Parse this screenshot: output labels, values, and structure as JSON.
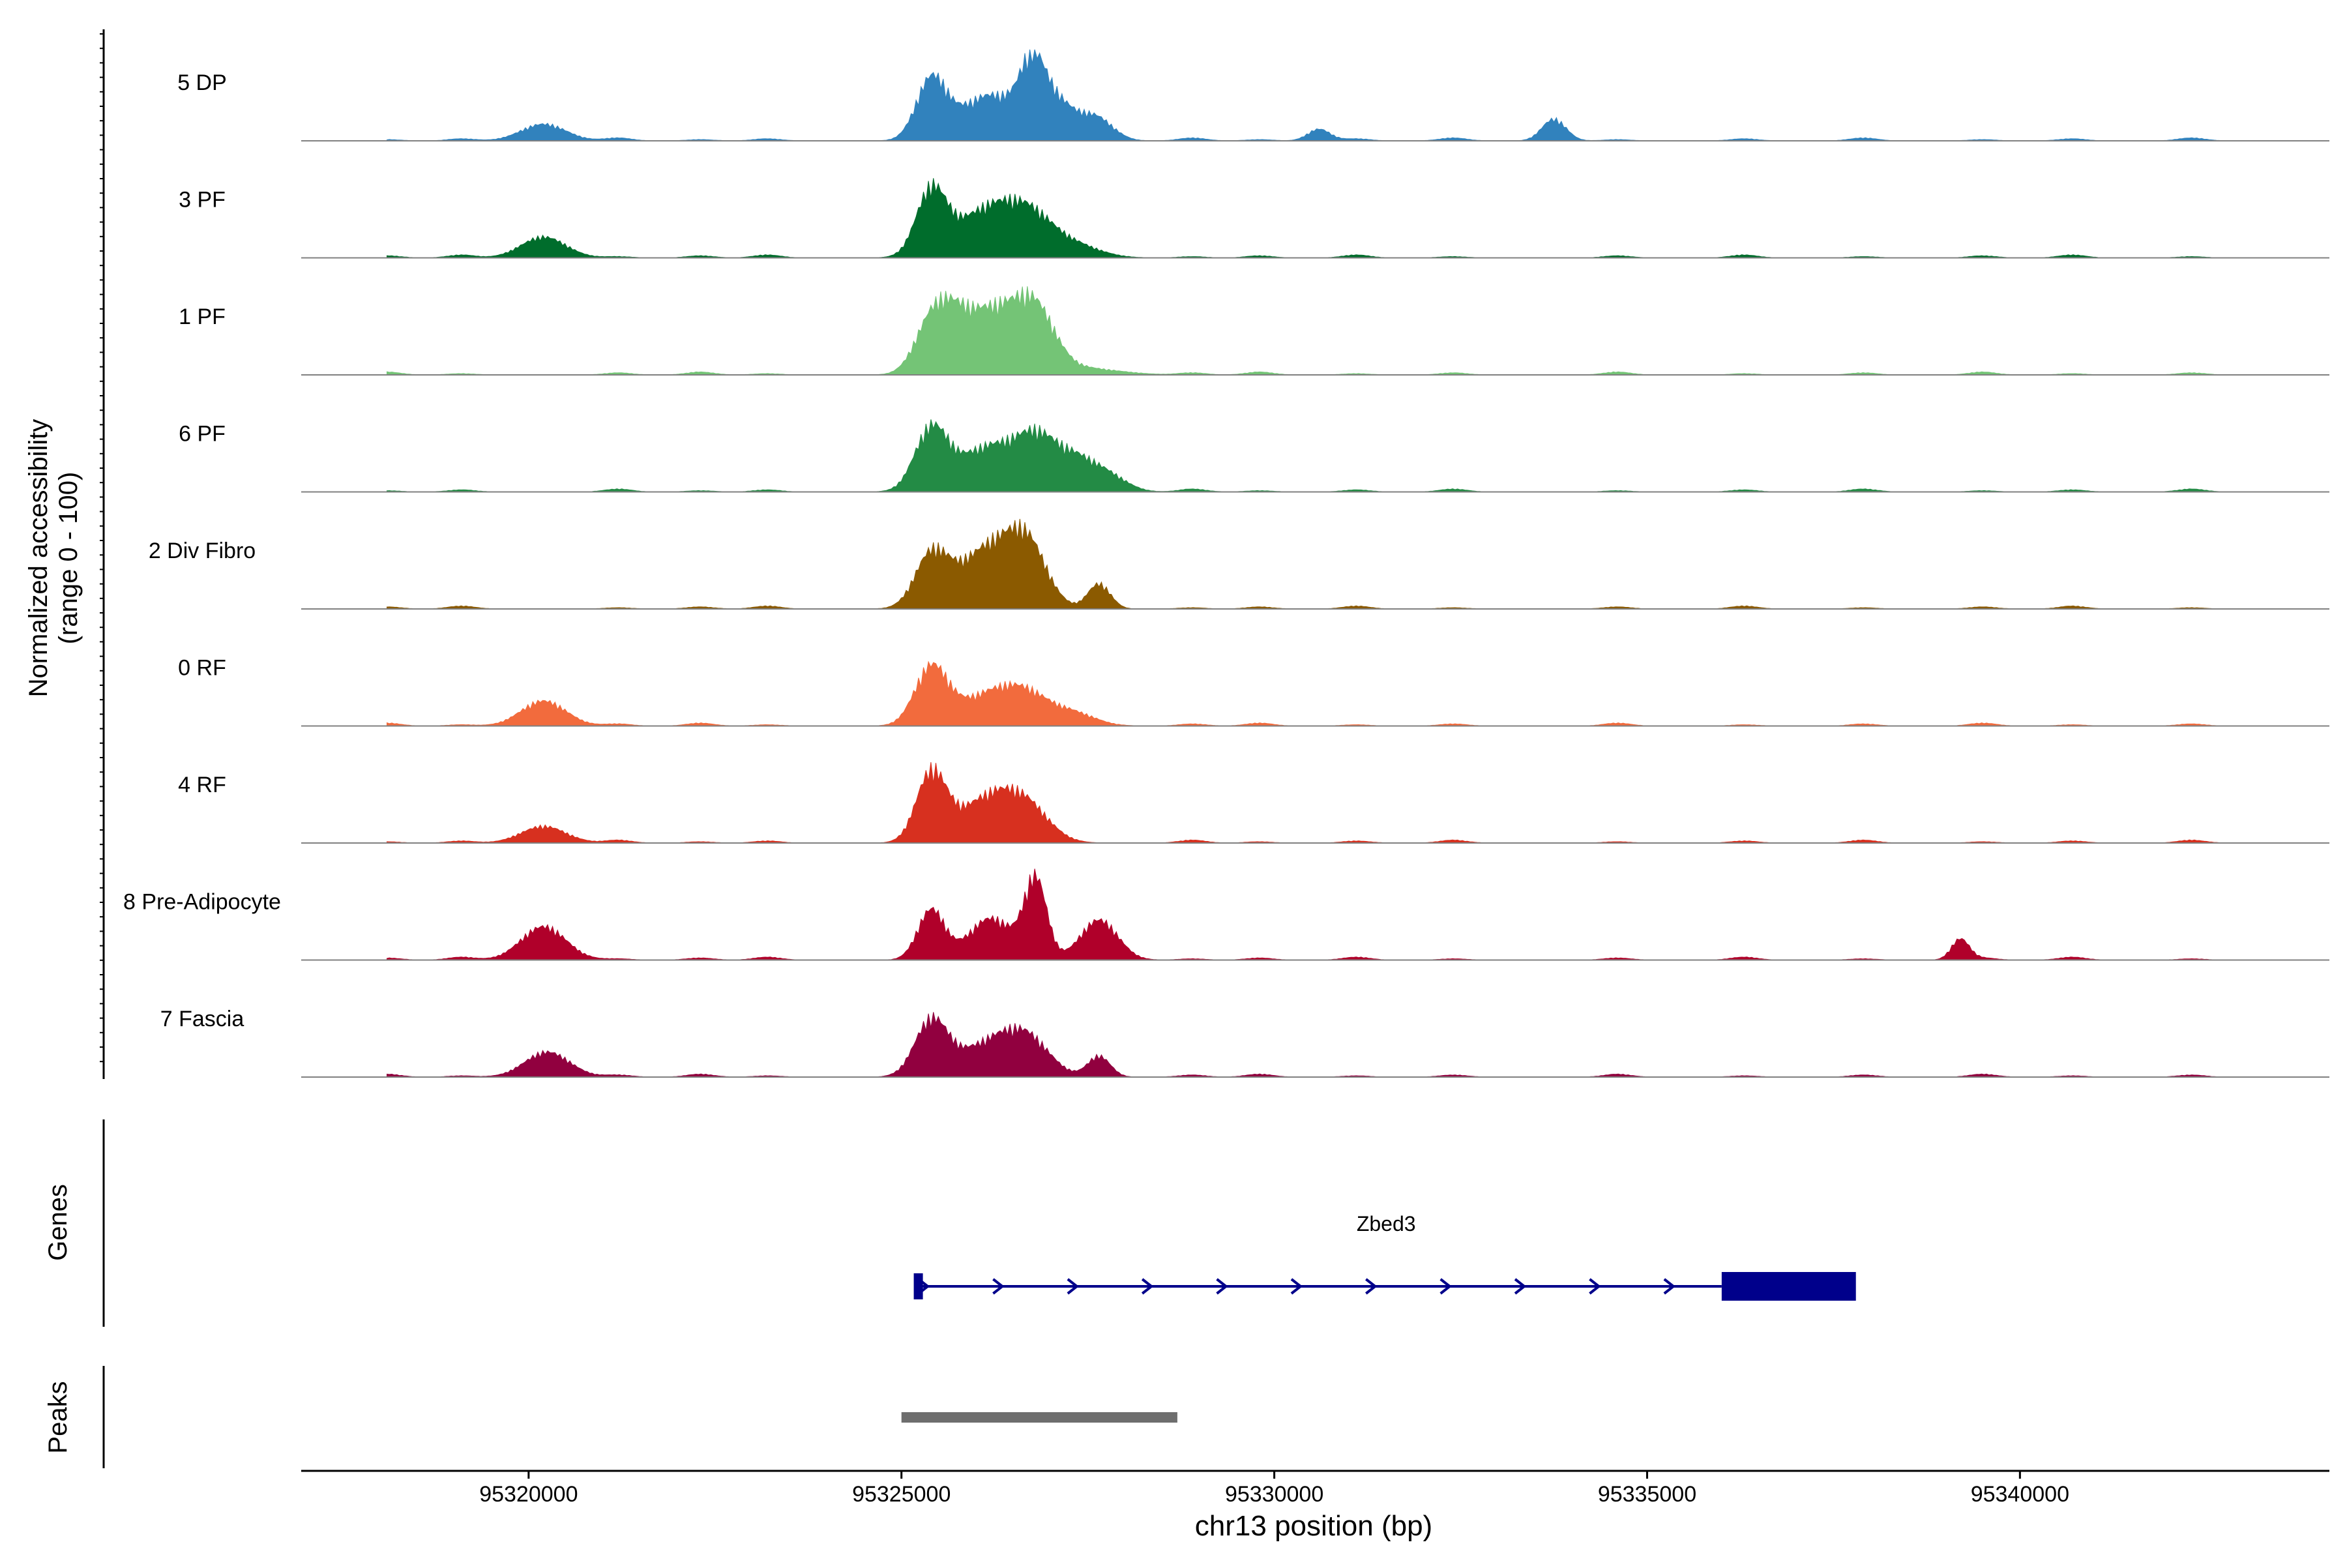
{
  "chart_data": {
    "type": "area",
    "title": "",
    "ylabel_line1": "Normalized accessibility",
    "ylabel_line2": "(range 0 - 100)",
    "xlabel": "chr13 position (bp)",
    "xlim": [
      95316950,
      95344150
    ],
    "ylim": [
      0,
      100
    ],
    "x_ticks": [
      95320000,
      95325000,
      95330000,
      95335000,
      95340000
    ],
    "x_tick_labels": [
      "95320000",
      "95325000",
      "95330000",
      "95335000",
      "95340000"
    ],
    "tracks": [
      {
        "name": "5 DP",
        "color": "#3182BD",
        "peaks": [
          [
            95320200,
            20,
            300
          ],
          [
            95325400,
            70,
            200
          ],
          [
            95326200,
            55,
            420
          ],
          [
            95326750,
            65,
            160
          ],
          [
            95327050,
            45,
            240
          ],
          [
            95327600,
            28,
            230
          ],
          [
            95330600,
            14,
            150
          ],
          [
            95333750,
            26,
            160
          ]
        ]
      },
      {
        "name": "3 PF",
        "color": "#006D2C",
        "peaks": [
          [
            95320200,
            25,
            300
          ],
          [
            95325400,
            75,
            200
          ],
          [
            95326200,
            60,
            450
          ],
          [
            95326750,
            30,
            300
          ],
          [
            95327300,
            15,
            350
          ]
        ]
      },
      {
        "name": "1 PF",
        "color": "#74C476",
        "peaks": [
          [
            95325400,
            58,
            220
          ],
          [
            95325700,
            30,
            200
          ],
          [
            95326200,
            78,
            420
          ],
          [
            95326800,
            60,
            260
          ],
          [
            95327400,
            8,
            500
          ]
        ]
      },
      {
        "name": "6 PF",
        "color": "#238B45",
        "peaks": [
          [
            95325400,
            72,
            220
          ],
          [
            95326200,
            55,
            420
          ],
          [
            95326800,
            45,
            250
          ],
          [
            95327300,
            40,
            300
          ],
          [
            95327800,
            15,
            250
          ]
        ]
      },
      {
        "name": "2 Div Fibro",
        "color": "#8B5A00",
        "peaks": [
          [
            95325400,
            60,
            220
          ],
          [
            95326200,
            75,
            420
          ],
          [
            95326700,
            55,
            250
          ],
          [
            95327650,
            30,
            150
          ]
        ]
      },
      {
        "name": "0 RF",
        "color": "#F26B3D",
        "peaks": [
          [
            95320200,
            30,
            300
          ],
          [
            95325400,
            68,
            220
          ],
          [
            95326200,
            38,
            420
          ],
          [
            95326700,
            25,
            300
          ],
          [
            95327300,
            15,
            300
          ]
        ]
      },
      {
        "name": "4 RF",
        "color": "#D7301F",
        "peaks": [
          [
            95320200,
            20,
            300
          ],
          [
            95325400,
            80,
            200
          ],
          [
            95326200,
            55,
            420
          ],
          [
            95326700,
            28,
            300
          ]
        ]
      },
      {
        "name": "8 Pre-Adipocyte",
        "color": "#B0002A",
        "peaks": [
          [
            95325400,
            60,
            180
          ],
          [
            95326200,
            50,
            300
          ],
          [
            95326800,
            95,
            150
          ],
          [
            95327650,
            48,
            250
          ],
          [
            95339200,
            25,
            120
          ],
          [
            95320200,
            40,
            300
          ]
        ]
      },
      {
        "name": "7 Fascia",
        "color": "#91003F",
        "peaks": [
          [
            95320250,
            30,
            300
          ],
          [
            95325400,
            65,
            220
          ],
          [
            95326200,
            40,
            420
          ],
          [
            95326700,
            35,
            300
          ],
          [
            95327650,
            25,
            150
          ]
        ]
      }
    ],
    "genes_label": "Genes",
    "gene": {
      "name": "Zbed3",
      "start": 95325200,
      "end": 95337800,
      "utr_start": 95336000,
      "strand": "+",
      "color": "#00008B"
    },
    "peaks_label": "Peaks",
    "peak_regions": [
      [
        95325000,
        95328700
      ]
    ],
    "peak_color": "#6E6E6E"
  }
}
